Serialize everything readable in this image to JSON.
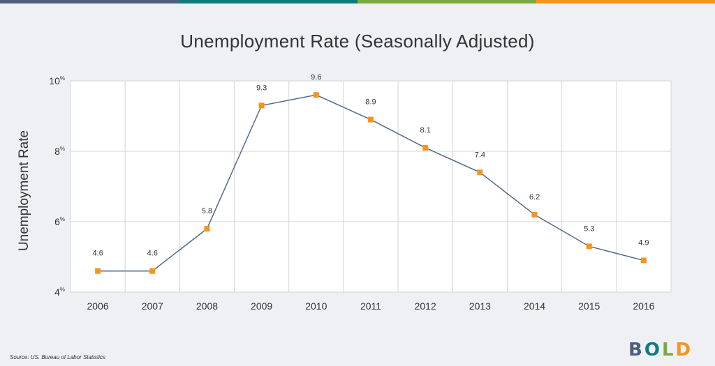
{
  "decor": {
    "top_bar_colors": [
      "#4d5e7e",
      "#0b7d80",
      "#7cab3b",
      "#f7941d"
    ]
  },
  "colors": {
    "line": "#56698a",
    "marker": "#f7941d",
    "grid": "#d2d4d9",
    "plot_bg": "#ffffff",
    "text": "#333333"
  },
  "chart_data": {
    "type": "line",
    "title": "Unemployment Rate (Seasonally Adjusted)",
    "ylabel": "Unemployment Rate",
    "xlabel": "",
    "categories": [
      "2006",
      "2007",
      "2008",
      "2009",
      "2010",
      "2011",
      "2012",
      "2013",
      "2014",
      "2015",
      "2016"
    ],
    "series": [
      {
        "values": [
          4.6,
          4.6,
          5.8,
          9.3,
          9.6,
          8.9,
          8.1,
          7.4,
          6.2,
          5.3,
          4.9
        ],
        "data_labels": [
          "4.6",
          "4.6",
          "5.8",
          "9.3",
          "9.6",
          "8.9",
          "8.1",
          "7.4",
          "6.2",
          "5.3",
          "4.9"
        ]
      }
    ],
    "ylim": [
      4,
      10
    ],
    "yticks": [
      4,
      6,
      8,
      10
    ],
    "ytick_labels": [
      "4",
      "6",
      "8",
      "10"
    ],
    "ytick_unit": "%",
    "grid": true,
    "legend": "none"
  },
  "footer": {
    "source": "Source: US. Bureau of Labor Statistics"
  },
  "logo": {
    "letters": [
      "B",
      "O",
      "L",
      "D"
    ],
    "colors": [
      "#4d5e7e",
      "#0b7d80",
      "#7cab3b",
      "#f7941d"
    ]
  }
}
